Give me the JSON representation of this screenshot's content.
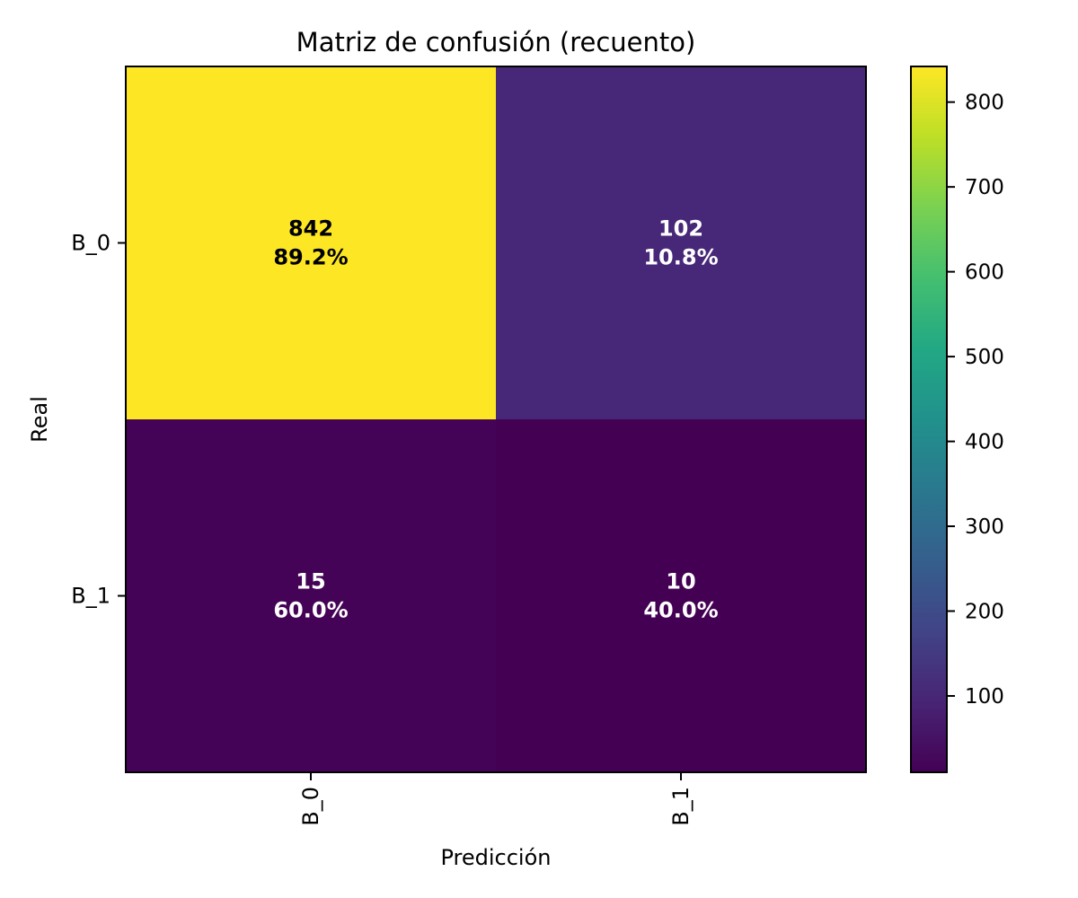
{
  "chart_data": {
    "type": "heatmap",
    "title": "Matriz de confusión (recuento)",
    "xlabel": "Predicción",
    "ylabel": "Real",
    "x_categories": [
      "B_0",
      "B_1"
    ],
    "y_categories": [
      "B_0",
      "B_1"
    ],
    "values": [
      [
        842,
        102
      ],
      [
        15,
        10
      ]
    ],
    "percent_labels": [
      [
        "89.2%",
        "10.8%"
      ],
      [
        "60.0%",
        "40.0%"
      ]
    ],
    "colormap": "viridis",
    "color_range": [
      10,
      842
    ],
    "colorbar_ticks": [
      100,
      200,
      300,
      400,
      500,
      600,
      700,
      800
    ],
    "x_tick_rotation": "vertical",
    "grid": false
  }
}
